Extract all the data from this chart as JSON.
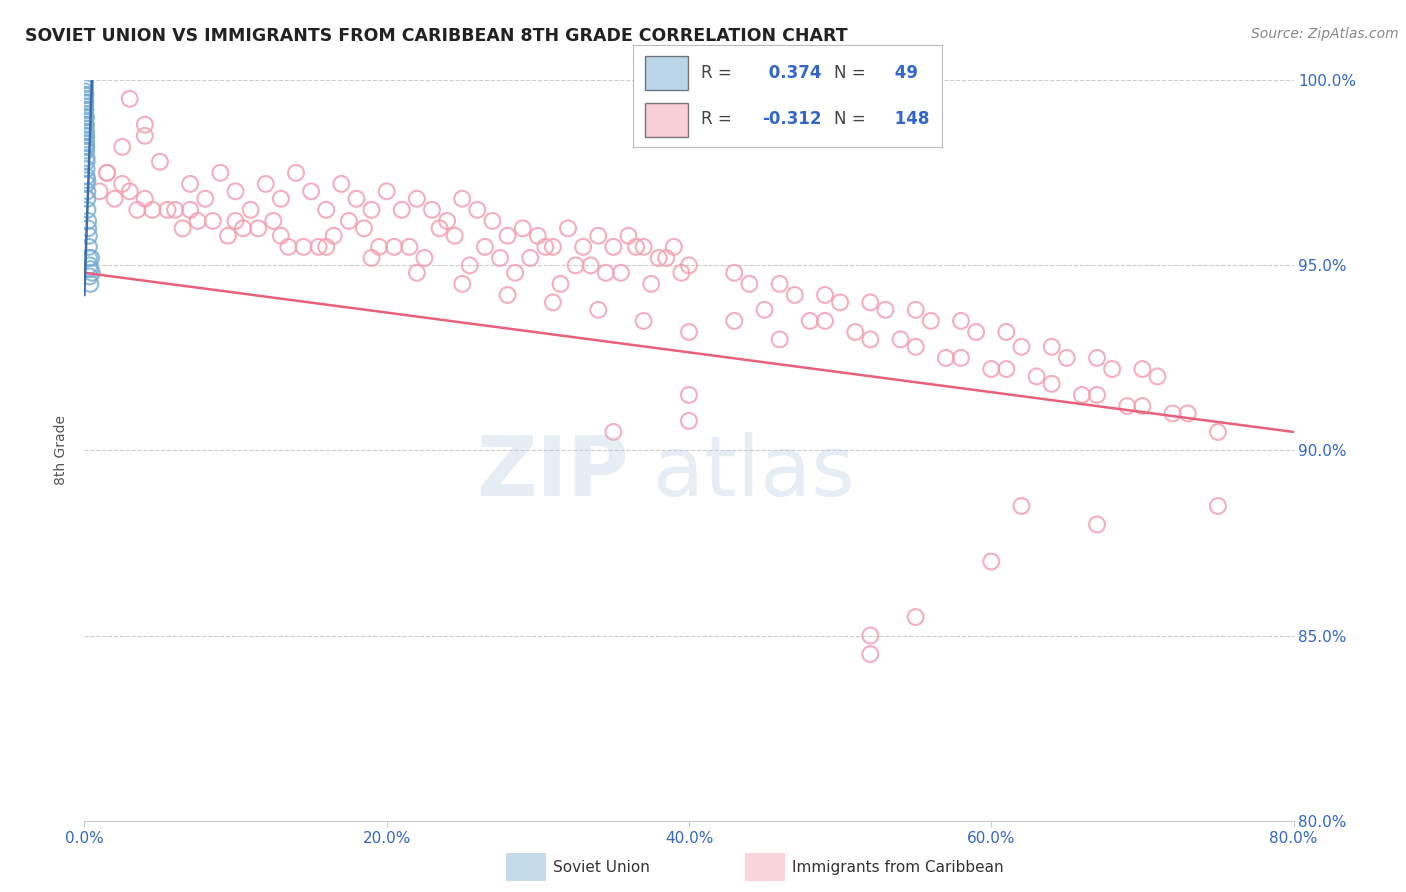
{
  "title": "SOVIET UNION VS IMMIGRANTS FROM CARIBBEAN 8TH GRADE CORRELATION CHART",
  "source": "Source: ZipAtlas.com",
  "ylabel": "8th Grade",
  "legend1": "Soviet Union",
  "legend2": "Immigrants from Caribbean",
  "r1": 0.374,
  "n1": 49,
  "r2": -0.312,
  "n2": 148,
  "xlim": [
    0.0,
    80.0
  ],
  "ylim": [
    80.0,
    100.0
  ],
  "xticks": [
    0.0,
    20.0,
    40.0,
    60.0,
    80.0
  ],
  "yticks": [
    80.0,
    85.0,
    90.0,
    95.0,
    100.0
  ],
  "color_blue": "#7BAFD4",
  "color_pink": "#F4A0B0",
  "color_trendline_blue": "#3B6EA8",
  "color_trendline_pink": "#E8607A",
  "color_title": "#222222",
  "color_axis_labels": "#3366CC",
  "color_source": "#888888",
  "background_color": "#FFFFFF",
  "blue_x": [
    0.05,
    0.05,
    0.05,
    0.05,
    0.05,
    0.05,
    0.05,
    0.05,
    0.07,
    0.07,
    0.07,
    0.07,
    0.07,
    0.07,
    0.1,
    0.1,
    0.1,
    0.1,
    0.1,
    0.12,
    0.12,
    0.12,
    0.15,
    0.15,
    0.15,
    0.15,
    0.2,
    0.2,
    0.2,
    0.25,
    0.25,
    0.3,
    0.3,
    0.3,
    0.35,
    0.35,
    0.4,
    0.4,
    0.45,
    0.5,
    0.05,
    0.05,
    0.05,
    0.07,
    0.07,
    0.1,
    0.12,
    0.15,
    0.2
  ],
  "blue_y": [
    99.8,
    100.0,
    99.9,
    99.7,
    99.5,
    99.3,
    99.1,
    98.9,
    99.6,
    99.4,
    99.2,
    99.0,
    98.8,
    98.6,
    99.0,
    98.8,
    98.6,
    98.4,
    98.2,
    98.5,
    98.3,
    98.1,
    97.8,
    97.6,
    97.4,
    97.2,
    97.0,
    96.8,
    96.5,
    96.2,
    96.0,
    95.8,
    95.5,
    95.2,
    95.0,
    94.7,
    94.9,
    94.5,
    95.2,
    94.8,
    99.6,
    99.4,
    99.2,
    99.0,
    98.7,
    98.5,
    98.2,
    97.9,
    97.3
  ],
  "pink_x": [
    1.5,
    2.5,
    3.0,
    4.0,
    5.0,
    6.0,
    7.0,
    8.0,
    9.0,
    10.0,
    11.0,
    12.0,
    13.0,
    14.0,
    15.0,
    16.0,
    17.0,
    18.0,
    19.0,
    20.0,
    21.0,
    22.0,
    23.0,
    24.0,
    25.0,
    26.0,
    27.0,
    28.0,
    29.0,
    30.0,
    31.0,
    32.0,
    33.0,
    34.0,
    35.0,
    36.0,
    37.0,
    38.0,
    39.0,
    40.0,
    3.5,
    6.5,
    9.5,
    12.5,
    15.5,
    18.5,
    21.5,
    24.5,
    27.5,
    30.5,
    33.5,
    36.5,
    39.5,
    2.0,
    5.5,
    8.5,
    11.5,
    14.5,
    17.5,
    20.5,
    23.5,
    26.5,
    29.5,
    32.5,
    35.5,
    38.5,
    4.5,
    7.5,
    10.5,
    13.5,
    16.5,
    19.5,
    22.5,
    25.5,
    28.5,
    31.5,
    34.5,
    37.5,
    1.0,
    4.0,
    7.0,
    10.0,
    13.0,
    16.0,
    19.0,
    22.0,
    25.0,
    28.0,
    31.0,
    34.0,
    37.0,
    40.0,
    43.0,
    46.0,
    49.0,
    52.0,
    55.0,
    58.0,
    61.0,
    64.0,
    67.0,
    70.0,
    73.0,
    43.0,
    46.0,
    49.0,
    52.0,
    55.0,
    58.0,
    61.0,
    64.0,
    67.0,
    70.0,
    44.0,
    47.0,
    50.0,
    53.0,
    56.0,
    59.0,
    62.0,
    65.0,
    68.0,
    71.0,
    45.0,
    48.0,
    51.0,
    54.0,
    57.0,
    60.0,
    63.0,
    66.0,
    69.0,
    72.0,
    75.0,
    1.5,
    2.5,
    3.0,
    4.0,
    40.0,
    55.0,
    62.0,
    67.0,
    52.0,
    60.0,
    75.0,
    35.0,
    40.0,
    52.0
  ],
  "pink_y": [
    97.5,
    98.2,
    97.0,
    98.5,
    97.8,
    96.5,
    97.2,
    96.8,
    97.5,
    97.0,
    96.5,
    97.2,
    96.8,
    97.5,
    97.0,
    96.5,
    97.2,
    96.8,
    96.5,
    97.0,
    96.5,
    96.8,
    96.5,
    96.2,
    96.8,
    96.5,
    96.2,
    95.8,
    96.0,
    95.8,
    95.5,
    96.0,
    95.5,
    95.8,
    95.5,
    95.8,
    95.5,
    95.2,
    95.5,
    95.0,
    96.5,
    96.0,
    95.8,
    96.2,
    95.5,
    96.0,
    95.5,
    95.8,
    95.2,
    95.5,
    95.0,
    95.5,
    94.8,
    96.8,
    96.5,
    96.2,
    96.0,
    95.5,
    96.2,
    95.5,
    96.0,
    95.5,
    95.2,
    95.0,
    94.8,
    95.2,
    96.5,
    96.2,
    96.0,
    95.5,
    95.8,
    95.5,
    95.2,
    95.0,
    94.8,
    94.5,
    94.8,
    94.5,
    97.0,
    96.8,
    96.5,
    96.2,
    95.8,
    95.5,
    95.2,
    94.8,
    94.5,
    94.2,
    94.0,
    93.8,
    93.5,
    93.2,
    93.5,
    93.0,
    93.5,
    93.0,
    92.8,
    92.5,
    92.2,
    91.8,
    91.5,
    91.2,
    91.0,
    94.8,
    94.5,
    94.2,
    94.0,
    93.8,
    93.5,
    93.2,
    92.8,
    92.5,
    92.2,
    94.5,
    94.2,
    94.0,
    93.8,
    93.5,
    93.2,
    92.8,
    92.5,
    92.2,
    92.0,
    93.8,
    93.5,
    93.2,
    93.0,
    92.5,
    92.2,
    92.0,
    91.5,
    91.2,
    91.0,
    90.5,
    97.5,
    97.2,
    99.5,
    98.8,
    91.5,
    85.5,
    88.5,
    88.0,
    85.0,
    87.0,
    88.5,
    90.5,
    90.8,
    84.5
  ],
  "pink_trend_x": [
    0.0,
    80.0
  ],
  "pink_trend_y": [
    94.8,
    90.5
  ],
  "blue_trend_x": [
    0.0,
    0.5
  ],
  "blue_trend_y": [
    94.2,
    100.0
  ],
  "watermark_text1": "ZIP",
  "watermark_text2": "atlas"
}
